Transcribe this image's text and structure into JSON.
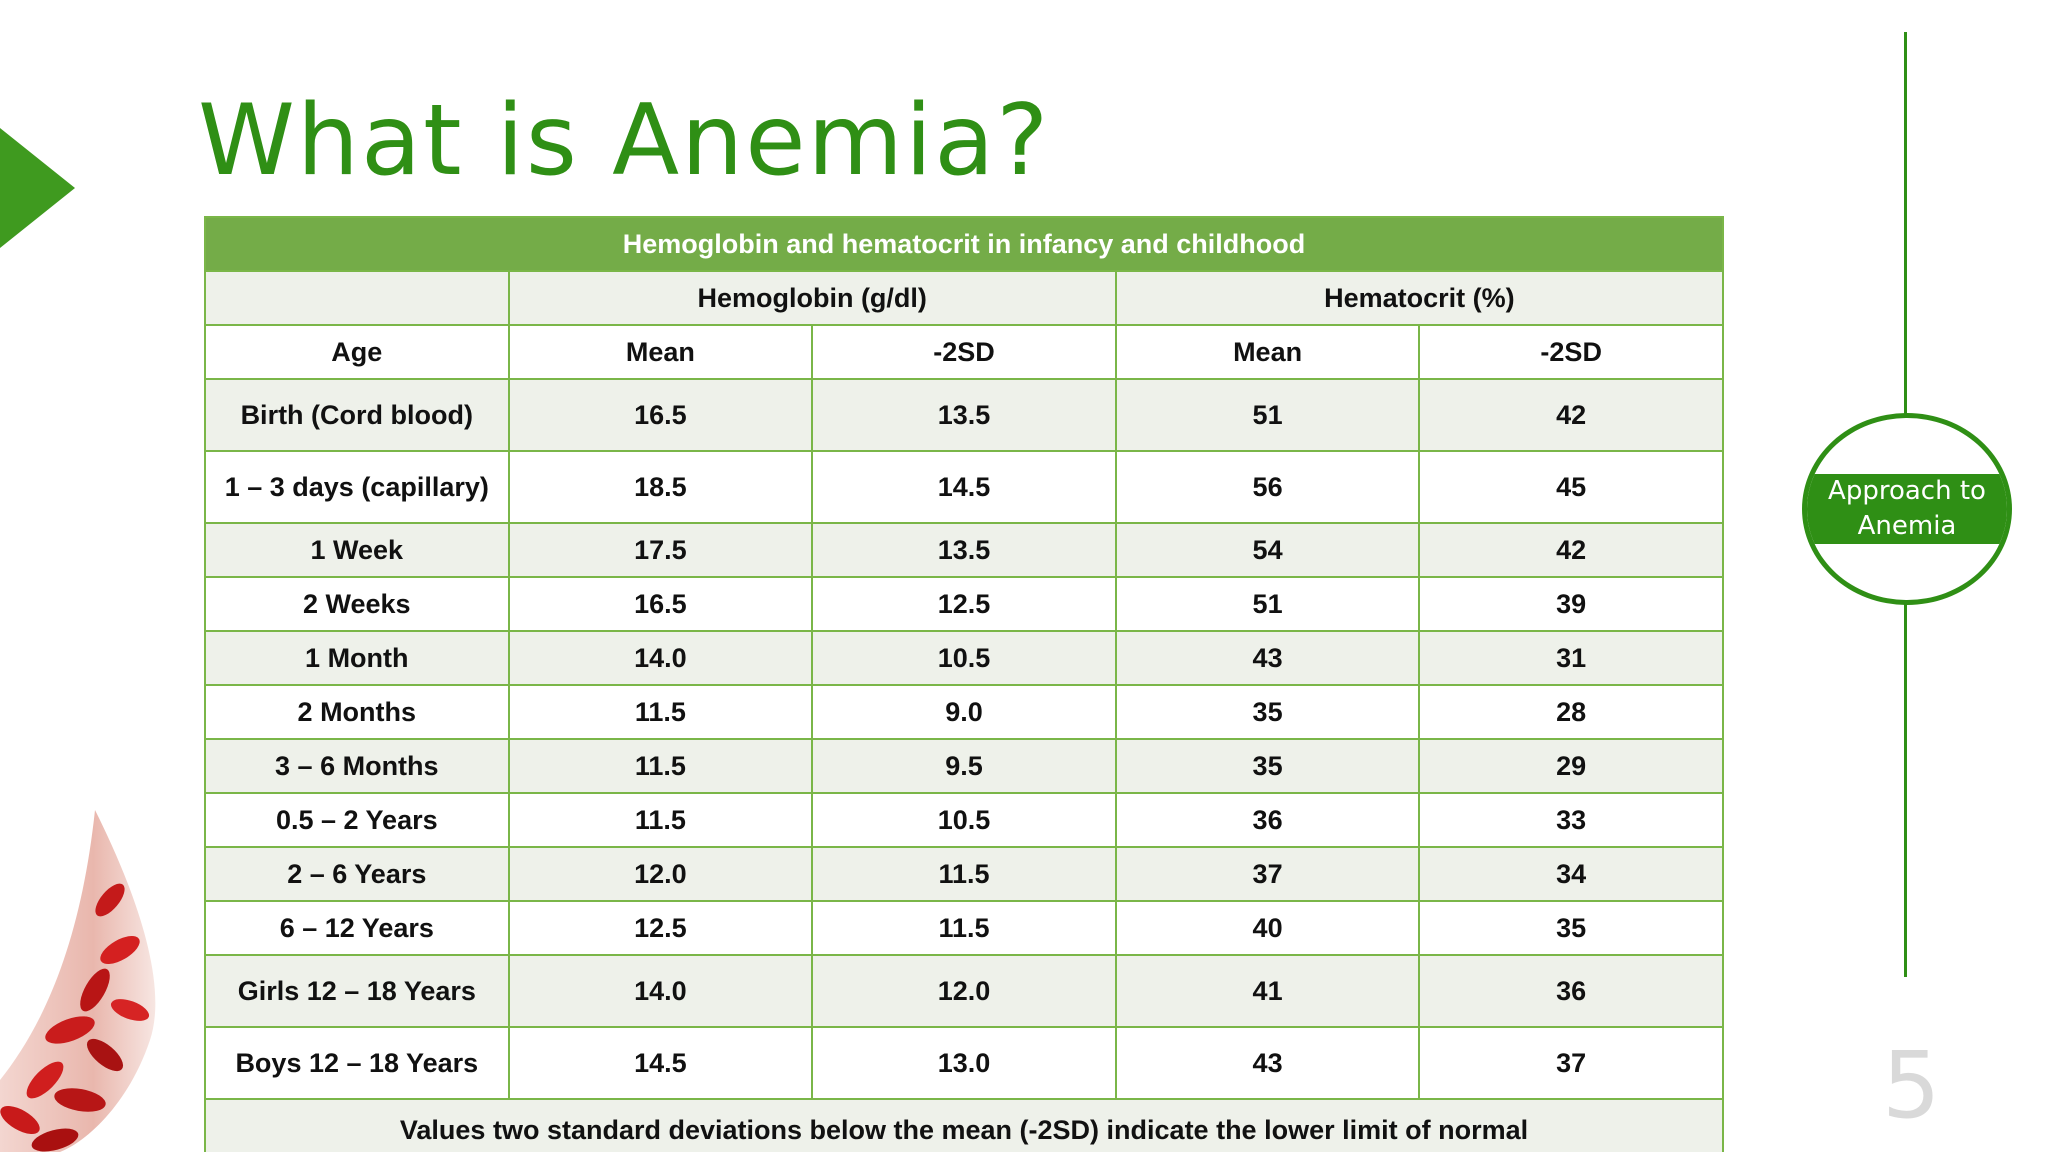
{
  "slide": {
    "title": "What is Anemia?",
    "page_number": "5",
    "nav_label": "Approach to Anemia",
    "accent_color": "#2f8f15",
    "table_header_color": "#74ac48"
  },
  "table": {
    "caption": "Hemoglobin and hematocrit in infancy and childhood",
    "group_headers": [
      "Hemoglobin (g/dl)",
      "Hematocrit (%)"
    ],
    "column_headers": [
      "Age",
      "Mean",
      "-2SD",
      "Mean",
      "-2SD"
    ],
    "rows": [
      [
        "Birth (Cord blood)",
        "16.5",
        "13.5",
        "51",
        "42"
      ],
      [
        "1 – 3 days (capillary)",
        "18.5",
        "14.5",
        "56",
        "45"
      ],
      [
        "1 Week",
        "17.5",
        "13.5",
        "54",
        "42"
      ],
      [
        "2 Weeks",
        "16.5",
        "12.5",
        "51",
        "39"
      ],
      [
        "1 Month",
        "14.0",
        "10.5",
        "43",
        "31"
      ],
      [
        "2 Months",
        "11.5",
        "9.0",
        "35",
        "28"
      ],
      [
        "3 – 6 Months",
        "11.5",
        "9.5",
        "35",
        "29"
      ],
      [
        "0.5 – 2 Years",
        "11.5",
        "10.5",
        "36",
        "33"
      ],
      [
        "2 – 6 Years",
        "12.0",
        "11.5",
        "37",
        "34"
      ],
      [
        "6 – 12 Years",
        "12.5",
        "11.5",
        "40",
        "35"
      ],
      [
        "Girls 12 – 18 Years",
        "14.0",
        "12.0",
        "41",
        "36"
      ],
      [
        "Boys 12 – 18 Years",
        "14.5",
        "13.0",
        "43",
        "37"
      ]
    ],
    "footnote": "Values two standard deviations below the mean (-2SD) indicate the lower limit of normal"
  }
}
